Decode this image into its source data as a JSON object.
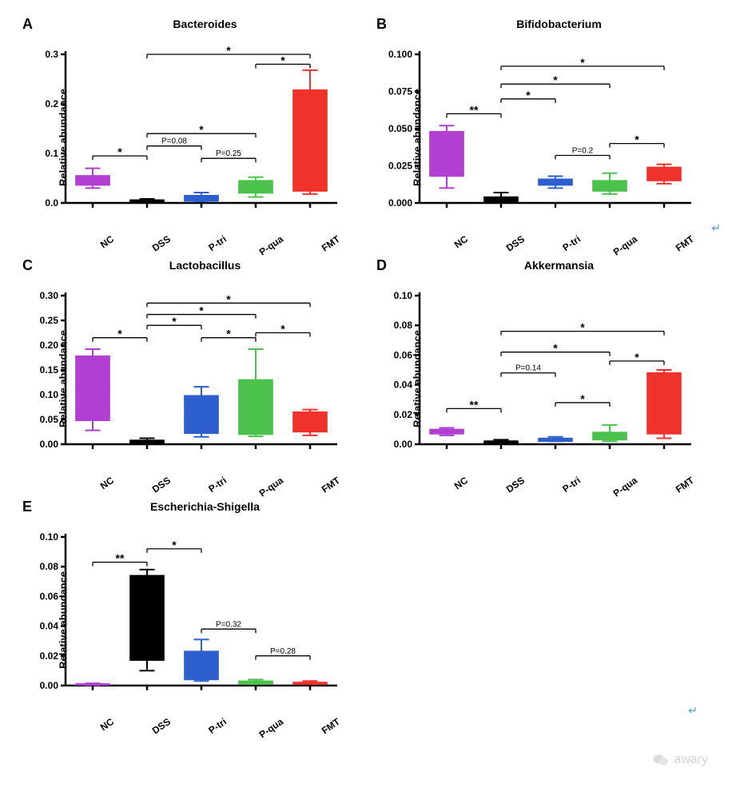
{
  "ylabel": "Relative abundance",
  "categories": [
    "NC",
    "DSS",
    "P-tri",
    "P-qua",
    "FMT"
  ],
  "colors": {
    "NC": "#b13fd1",
    "DSS": "#000000",
    "P-tri": "#2e5fce",
    "P-qua": "#4bc24b",
    "FMT": "#f0322c",
    "axis": "#000000",
    "background": "#ffffff"
  },
  "axis_linewidth": 2.5,
  "bar_rel_width": 0.62,
  "whisker_cap_rel": 0.28,
  "label_fontsize": 13,
  "tick_fontsize": 12,
  "title_fontsize": 14,
  "panels": {
    "A": {
      "title": "Bacteroides",
      "ylim": [
        0.0,
        0.3
      ],
      "ytick_step": 0.1,
      "tick_decimals": 1,
      "boxes": [
        {
          "cat": "NC",
          "box_low": 0.036,
          "box_high": 0.055,
          "median": 0.048,
          "w_low": 0.03,
          "w_high": 0.07
        },
        {
          "cat": "DSS",
          "box_low": 0.001,
          "box_high": 0.006,
          "median": 0.003,
          "w_low": 0.001,
          "w_high": 0.008
        },
        {
          "cat": "P-tri",
          "box_low": 0.004,
          "box_high": 0.015,
          "median": 0.01,
          "w_low": 0.003,
          "w_high": 0.021
        },
        {
          "cat": "P-qua",
          "box_low": 0.02,
          "box_high": 0.045,
          "median": 0.035,
          "w_low": 0.012,
          "w_high": 0.052
        },
        {
          "cat": "FMT",
          "box_low": 0.024,
          "box_high": 0.228,
          "median": 0.05,
          "w_low": 0.018,
          "w_high": 0.268
        }
      ],
      "annotations": [
        {
          "from": 0,
          "to": 1,
          "y": 0.095,
          "label": "*"
        },
        {
          "from": 1,
          "to": 2,
          "y": 0.115,
          "label": "P=0.08"
        },
        {
          "from": 2,
          "to": 3,
          "y": 0.09,
          "label": "P=0.25"
        },
        {
          "from": 1,
          "to": 3,
          "y": 0.14,
          "label": "*"
        },
        {
          "from": 3,
          "to": 4,
          "y": 0.28,
          "label": "*"
        },
        {
          "from": 1,
          "to": 4,
          "y": 0.3,
          "label": "*"
        }
      ]
    },
    "B": {
      "title": "Bifidobacterium",
      "ylim": [
        0.0,
        0.1
      ],
      "ytick_step": 0.025,
      "tick_decimals": 3,
      "boxes": [
        {
          "cat": "NC",
          "box_low": 0.018,
          "box_high": 0.048,
          "median": 0.033,
          "w_low": 0.01,
          "w_high": 0.052
        },
        {
          "cat": "DSS",
          "box_low": 0.001,
          "box_high": 0.004,
          "median": 0.003,
          "w_low": 0.001,
          "w_high": 0.007
        },
        {
          "cat": "P-tri",
          "box_low": 0.012,
          "box_high": 0.016,
          "median": 0.015,
          "w_low": 0.01,
          "w_high": 0.018
        },
        {
          "cat": "P-qua",
          "box_low": 0.008,
          "box_high": 0.015,
          "median": 0.012,
          "w_low": 0.006,
          "w_high": 0.02
        },
        {
          "cat": "FMT",
          "box_low": 0.015,
          "box_high": 0.024,
          "median": 0.022,
          "w_low": 0.013,
          "w_high": 0.026
        }
      ],
      "annotations": [
        {
          "from": 0,
          "to": 1,
          "y": 0.06,
          "label": "**"
        },
        {
          "from": 1,
          "to": 2,
          "y": 0.07,
          "label": "*"
        },
        {
          "from": 2,
          "to": 3,
          "y": 0.032,
          "label": "P=0.2"
        },
        {
          "from": 1,
          "to": 3,
          "y": 0.08,
          "label": "*"
        },
        {
          "from": 3,
          "to": 4,
          "y": 0.04,
          "label": "*"
        },
        {
          "from": 1,
          "to": 4,
          "y": 0.092,
          "label": "*"
        }
      ]
    },
    "C": {
      "title": "Lactobacillus",
      "ylim": [
        0.0,
        0.3
      ],
      "ytick_step": 0.05,
      "tick_decimals": 2,
      "boxes": [
        {
          "cat": "NC",
          "box_low": 0.048,
          "box_high": 0.178,
          "median": 0.118,
          "w_low": 0.028,
          "w_high": 0.192
        },
        {
          "cat": "DSS",
          "box_low": 0.002,
          "box_high": 0.008,
          "median": 0.005,
          "w_low": 0.001,
          "w_high": 0.012
        },
        {
          "cat": "P-tri",
          "box_low": 0.022,
          "box_high": 0.098,
          "median": 0.062,
          "w_low": 0.015,
          "w_high": 0.116
        },
        {
          "cat": "P-qua",
          "box_low": 0.02,
          "box_high": 0.13,
          "median": 0.022,
          "w_low": 0.016,
          "w_high": 0.192
        },
        {
          "cat": "FMT",
          "box_low": 0.025,
          "box_high": 0.065,
          "median": 0.03,
          "w_low": 0.018,
          "w_high": 0.07
        }
      ],
      "annotations": [
        {
          "from": 0,
          "to": 1,
          "y": 0.215,
          "label": "*"
        },
        {
          "from": 1,
          "to": 2,
          "y": 0.24,
          "label": "*"
        },
        {
          "from": 2,
          "to": 3,
          "y": 0.215,
          "label": "*"
        },
        {
          "from": 1,
          "to": 3,
          "y": 0.262,
          "label": "*"
        },
        {
          "from": 3,
          "to": 4,
          "y": 0.225,
          "label": "*"
        },
        {
          "from": 1,
          "to": 4,
          "y": 0.285,
          "label": "*"
        }
      ]
    },
    "D": {
      "title": "Akkermansia",
      "ylim": [
        0.0,
        0.1
      ],
      "ytick_step": 0.02,
      "tick_decimals": 2,
      "boxes": [
        {
          "cat": "NC",
          "box_low": 0.007,
          "box_high": 0.01,
          "median": 0.009,
          "w_low": 0.006,
          "w_high": 0.011
        },
        {
          "cat": "DSS",
          "box_low": 0.001,
          "box_high": 0.002,
          "median": 0.002,
          "w_low": 0.001,
          "w_high": 0.003
        },
        {
          "cat": "P-tri",
          "box_low": 0.002,
          "box_high": 0.004,
          "median": 0.003,
          "w_low": 0.002,
          "w_high": 0.005
        },
        {
          "cat": "P-qua",
          "box_low": 0.003,
          "box_high": 0.008,
          "median": 0.006,
          "w_low": 0.002,
          "w_high": 0.013
        },
        {
          "cat": "FMT",
          "box_low": 0.007,
          "box_high": 0.048,
          "median": 0.03,
          "w_low": 0.004,
          "w_high": 0.05
        }
      ],
      "annotations": [
        {
          "from": 0,
          "to": 1,
          "y": 0.024,
          "label": "**"
        },
        {
          "from": 1,
          "to": 2,
          "y": 0.048,
          "label": "P=0.14"
        },
        {
          "from": 2,
          "to": 3,
          "y": 0.028,
          "label": "*"
        },
        {
          "from": 1,
          "to": 3,
          "y": 0.062,
          "label": "*"
        },
        {
          "from": 3,
          "to": 4,
          "y": 0.056,
          "label": "*"
        },
        {
          "from": 1,
          "to": 4,
          "y": 0.076,
          "label": "*"
        }
      ]
    },
    "E": {
      "title": "Escherichia-Shigella",
      "ylim": [
        0.0,
        0.1
      ],
      "ytick_step": 0.02,
      "tick_decimals": 2,
      "boxes": [
        {
          "cat": "NC",
          "box_low": 0.0004,
          "box_high": 0.001,
          "median": 0.001,
          "w_low": 0.0003,
          "w_high": 0.0015
        },
        {
          "cat": "DSS",
          "box_low": 0.017,
          "box_high": 0.074,
          "median": 0.06,
          "w_low": 0.01,
          "w_high": 0.078
        },
        {
          "cat": "P-tri",
          "box_low": 0.004,
          "box_high": 0.023,
          "median": 0.012,
          "w_low": 0.003,
          "w_high": 0.031
        },
        {
          "cat": "P-qua",
          "box_low": 0.001,
          "box_high": 0.003,
          "median": 0.002,
          "w_low": 0.001,
          "w_high": 0.004
        },
        {
          "cat": "FMT",
          "box_low": 0.001,
          "box_high": 0.002,
          "median": 0.002,
          "w_low": 0.001,
          "w_high": 0.003
        }
      ],
      "annotations": [
        {
          "from": 0,
          "to": 1,
          "y": 0.083,
          "label": "**"
        },
        {
          "from": 1,
          "to": 2,
          "y": 0.092,
          "label": "*"
        },
        {
          "from": 2,
          "to": 3,
          "y": 0.038,
          "label": "P=0.32"
        },
        {
          "from": 3,
          "to": 4,
          "y": 0.02,
          "label": "P=0.28"
        }
      ]
    }
  },
  "watermark": "awary"
}
